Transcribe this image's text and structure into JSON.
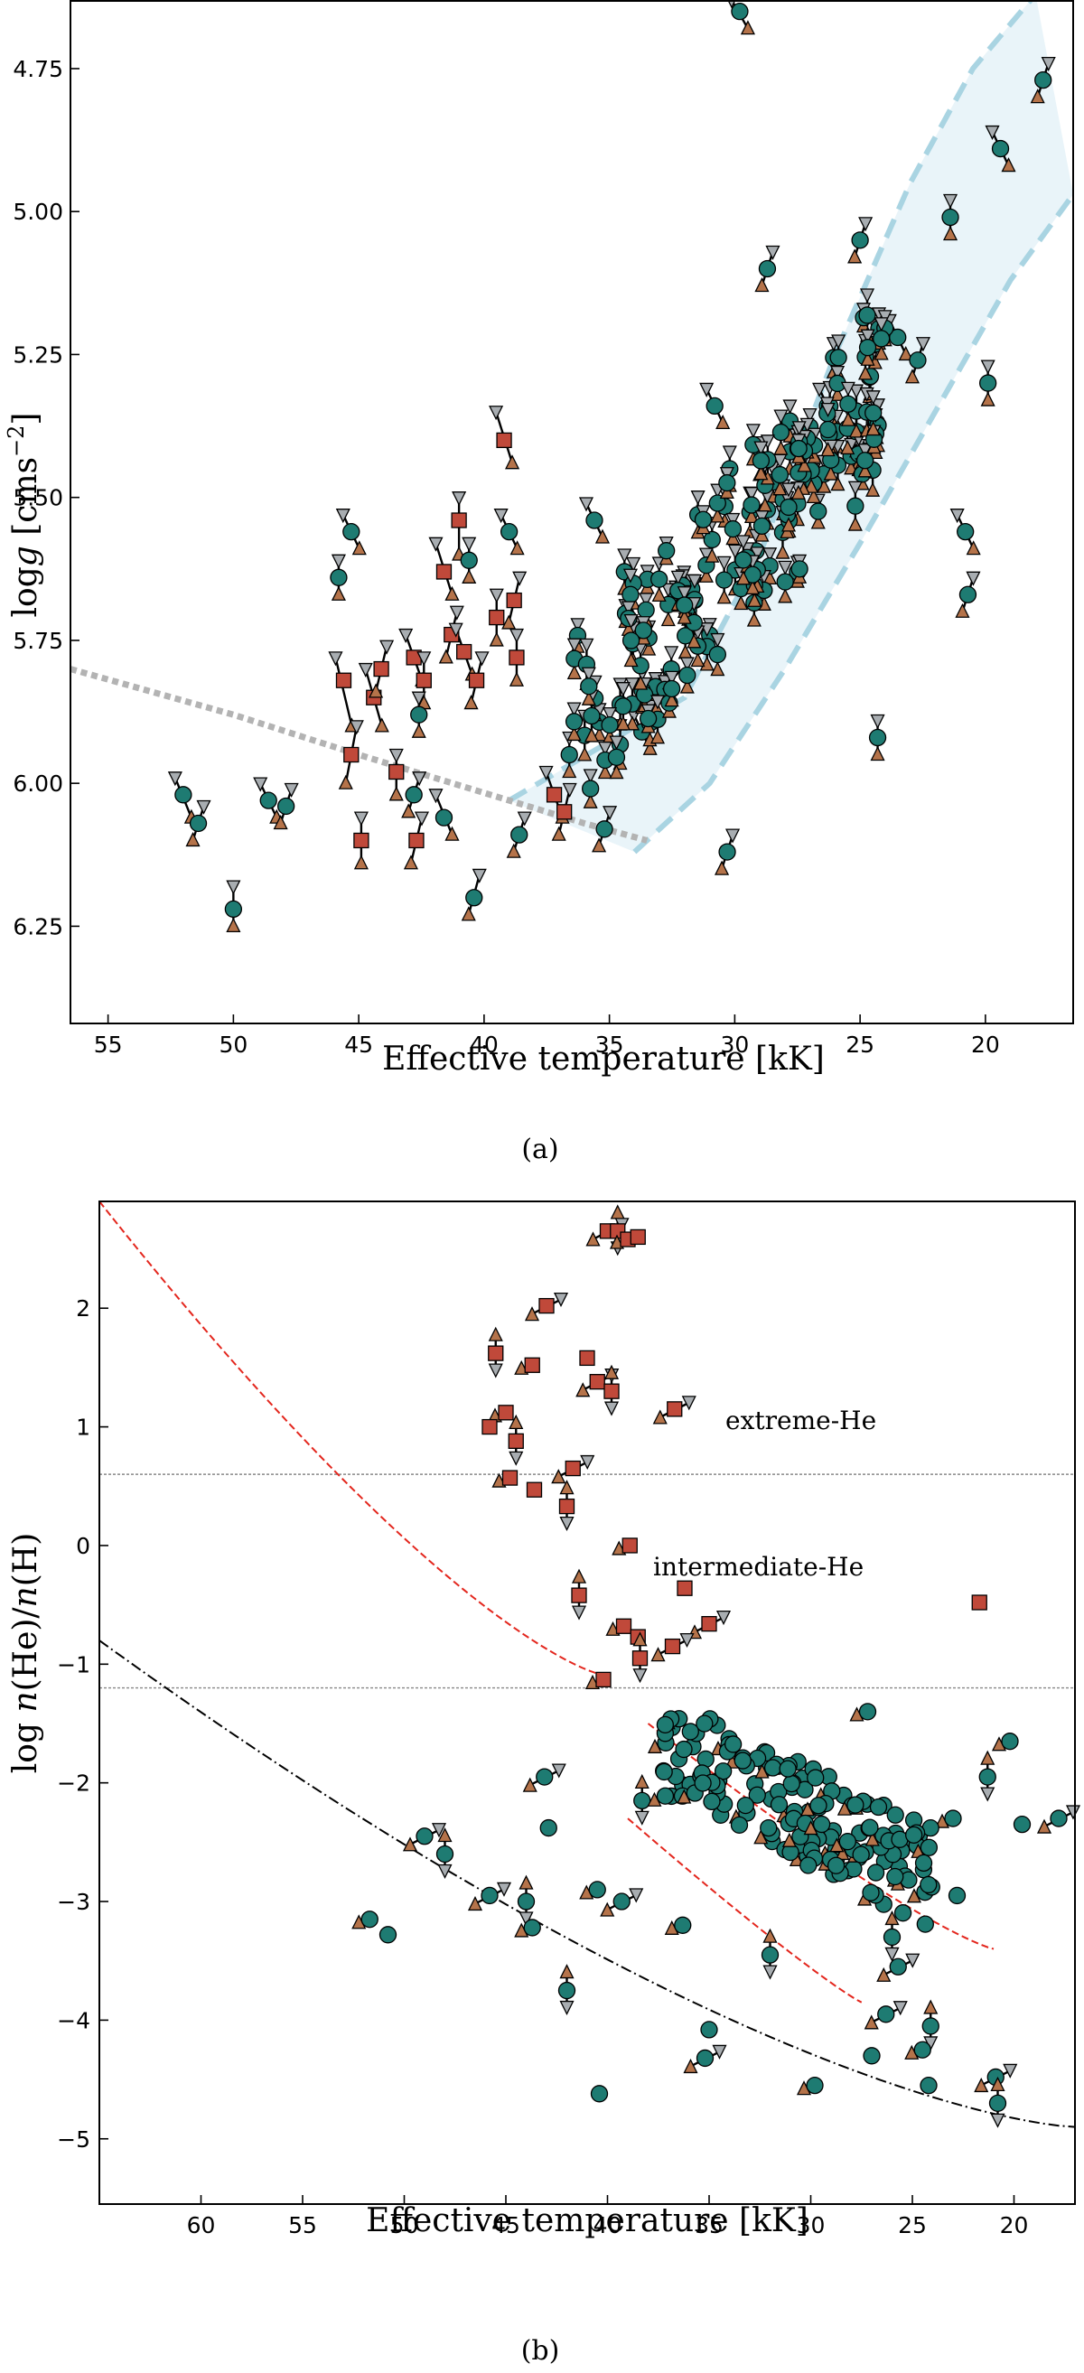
{
  "colors": {
    "H_rich": "#1e7b72",
    "He_rich": "#c0493a",
    "upper_bound": "#b5734a",
    "lower_bound": "#a8adb1",
    "band_fill": "#e9f4f9",
    "band_edge": "#a9d4e2",
    "zahb": "#b3b3b3",
    "red_curve": "#e3261d",
    "black_curve": "#000000",
    "threshold": "#888888"
  },
  "icons": {
    "H_rich": "circle",
    "He_rich": "square",
    "upper_bound": "triangle-up",
    "lower_bound": "triangle-down"
  },
  "chart_data": [
    {
      "panel": "(a)",
      "type": "scatter",
      "xlabel": "Effective temperature [kK]",
      "ylabel": "log g [cm s⁻²]",
      "ylabel_main": "log",
      "ylabel_var": "g",
      "ylabel_unit": " [cms",
      "ylabel_sup": "−2",
      "ylabel_end": "]",
      "xlim": [
        56.5,
        16.5
      ],
      "ylim": [
        6.42,
        4.63
      ],
      "xticks": [
        55,
        50,
        45,
        40,
        35,
        30,
        25,
        20
      ],
      "yticks": [
        4.75,
        5.0,
        5.25,
        5.5,
        5.75,
        6.0,
        6.25
      ],
      "yticklabels": [
        "4.75",
        "5.00",
        "5.25",
        "5.50",
        "5.75",
        "6.00",
        "6.25"
      ],
      "band": {
        "upper_edge": [
          [
            39.0,
            6.03
          ],
          [
            32.0,
            5.85
          ],
          [
            29.0,
            5.6
          ],
          [
            26.0,
            5.25
          ],
          [
            23.0,
            4.95
          ],
          [
            20.5,
            4.75
          ],
          [
            18.0,
            4.62
          ]
        ],
        "lower_edge": [
          [
            34.0,
            6.12
          ],
          [
            31.0,
            6.0
          ],
          [
            28.0,
            5.8
          ],
          [
            25.0,
            5.58
          ],
          [
            22.0,
            5.35
          ],
          [
            19.0,
            5.12
          ],
          [
            16.5,
            4.97
          ]
        ]
      },
      "zahb_line": [
        [
          56.5,
          5.8
        ],
        [
          50.0,
          5.88
        ],
        [
          45.0,
          5.95
        ],
        [
          42.0,
          5.99
        ],
        [
          39.0,
          6.03
        ],
        [
          36.0,
          6.07
        ],
        [
          33.5,
          6.1
        ]
      ],
      "he_rich_stars": [
        {
          "x": 45.6,
          "y": 5.82,
          "lo": 5.78,
          "hi": 5.9
        },
        {
          "x": 45.3,
          "y": 5.95,
          "lo": 5.9,
          "hi": 6.0
        },
        {
          "x": 44.9,
          "y": 6.1,
          "lo": 6.06,
          "hi": 6.14
        },
        {
          "x": 44.4,
          "y": 5.85,
          "lo": 5.8,
          "hi": 5.9
        },
        {
          "x": 44.1,
          "y": 5.8,
          "lo": 5.76,
          "hi": 5.84
        },
        {
          "x": 43.5,
          "y": 5.98,
          "lo": 5.95,
          "hi": 6.02
        },
        {
          "x": 42.8,
          "y": 5.78,
          "lo": 5.74,
          "hi": 5.82
        },
        {
          "x": 42.7,
          "y": 6.1,
          "lo": 6.06,
          "hi": 6.14
        },
        {
          "x": 42.4,
          "y": 5.82,
          "lo": 5.78,
          "hi": 5.86
        },
        {
          "x": 41.6,
          "y": 5.63,
          "lo": 5.58,
          "hi": 5.67
        },
        {
          "x": 41.3,
          "y": 5.74,
          "lo": 5.7,
          "hi": 5.78
        },
        {
          "x": 41.0,
          "y": 5.54,
          "lo": 5.5,
          "hi": 5.6
        },
        {
          "x": 40.8,
          "y": 5.77,
          "lo": 5.73,
          "hi": 5.81
        },
        {
          "x": 40.3,
          "y": 5.82,
          "lo": 5.78,
          "hi": 5.86
        },
        {
          "x": 39.5,
          "y": 5.71,
          "lo": 5.67,
          "hi": 5.75
        },
        {
          "x": 39.2,
          "y": 5.4,
          "lo": 5.35,
          "hi": 5.44
        },
        {
          "x": 38.8,
          "y": 5.68,
          "lo": 5.64,
          "hi": 5.72
        },
        {
          "x": 38.7,
          "y": 5.78,
          "lo": 5.74,
          "hi": 5.82
        },
        {
          "x": 37.2,
          "y": 6.02,
          "lo": 5.98,
          "hi": 6.06
        },
        {
          "x": 36.8,
          "y": 6.05,
          "lo": 6.01,
          "hi": 6.09
        }
      ],
      "h_rich_stars": [
        {
          "x": 52.0,
          "y": 6.02,
          "lo": 5.99,
          "hi": 6.06
        },
        {
          "x": 51.4,
          "y": 6.07,
          "lo": 6.04,
          "hi": 6.1
        },
        {
          "x": 50.0,
          "y": 6.22,
          "lo": 6.18,
          "hi": 6.25
        },
        {
          "x": 48.6,
          "y": 6.03,
          "lo": 6.0,
          "hi": 6.06
        },
        {
          "x": 47.9,
          "y": 6.04,
          "lo": 6.01,
          "hi": 6.07
        },
        {
          "x": 45.8,
          "y": 5.64,
          "lo": 5.61,
          "hi": 5.67
        },
        {
          "x": 45.3,
          "y": 5.56,
          "lo": 5.53,
          "hi": 5.59
        },
        {
          "x": 42.8,
          "y": 6.02,
          "lo": 5.99,
          "hi": 6.05
        },
        {
          "x": 42.6,
          "y": 5.88,
          "lo": 5.85,
          "hi": 5.91
        },
        {
          "x": 41.6,
          "y": 6.06,
          "lo": 6.02,
          "hi": 6.09
        },
        {
          "x": 40.4,
          "y": 6.2,
          "lo": 6.16,
          "hi": 6.23
        },
        {
          "x": 40.6,
          "y": 5.61,
          "lo": 5.58,
          "hi": 5.64
        },
        {
          "x": 39.0,
          "y": 5.56,
          "lo": 5.53,
          "hi": 5.59
        },
        {
          "x": 38.6,
          "y": 6.09,
          "lo": 6.06,
          "hi": 6.12
        },
        {
          "x": 36.6,
          "y": 5.95,
          "lo": 5.92,
          "hi": 5.98
        },
        {
          "x": 35.6,
          "y": 5.54,
          "lo": 5.51,
          "hi": 5.57
        },
        {
          "x": 35.2,
          "y": 6.08,
          "lo": 6.05,
          "hi": 6.11
        },
        {
          "x": 34.4,
          "y": 5.63,
          "lo": 5.6,
          "hi": 5.66
        },
        {
          "x": 33.7,
          "y": 5.91,
          "lo": 5.88,
          "hi": 5.94
        },
        {
          "x": 32.9,
          "y": 5.84,
          "lo": 5.81,
          "hi": 5.87
        },
        {
          "x": 31.6,
          "y": 5.68,
          "lo": 5.65,
          "hi": 5.71
        },
        {
          "x": 30.8,
          "y": 5.34,
          "lo": 5.31,
          "hi": 5.37
        },
        {
          "x": 30.3,
          "y": 6.12,
          "lo": 6.09,
          "hi": 6.15
        },
        {
          "x": 30.2,
          "y": 5.45,
          "lo": 5.42,
          "hi": 5.48
        },
        {
          "x": 29.8,
          "y": 4.65,
          "lo": 4.63,
          "hi": 4.68
        },
        {
          "x": 28.7,
          "y": 5.1,
          "lo": 5.07,
          "hi": 5.13
        },
        {
          "x": 27.8,
          "y": 5.42,
          "lo": 5.39,
          "hi": 5.45
        },
        {
          "x": 26.3,
          "y": 5.34,
          "lo": 5.31,
          "hi": 5.37
        },
        {
          "x": 25.0,
          "y": 5.05,
          "lo": 5.02,
          "hi": 5.08
        },
        {
          "x": 24.3,
          "y": 5.92,
          "lo": 5.89,
          "hi": 5.95
        },
        {
          "x": 23.5,
          "y": 5.22,
          "lo": 5.19,
          "hi": 5.25
        },
        {
          "x": 22.7,
          "y": 5.26,
          "lo": 5.23,
          "hi": 5.29
        },
        {
          "x": 21.4,
          "y": 5.01,
          "lo": 4.98,
          "hi": 5.04
        },
        {
          "x": 20.8,
          "y": 5.56,
          "lo": 5.53,
          "hi": 5.59
        },
        {
          "x": 20.7,
          "y": 5.67,
          "lo": 5.64,
          "hi": 5.7
        },
        {
          "x": 19.9,
          "y": 5.3,
          "lo": 5.27,
          "hi": 5.33
        },
        {
          "x": 19.4,
          "y": 4.89,
          "lo": 4.86,
          "hi": 4.92
        },
        {
          "x": 17.7,
          "y": 4.77,
          "lo": 4.74,
          "hi": 4.8
        }
      ],
      "cluster": {
        "xmin": 24.0,
        "xmax": 36.5,
        "seed": 11,
        "count": 150
      }
    },
    {
      "panel": "(b)",
      "type": "scatter",
      "xlabel": "Effective temperature [kK]",
      "ylabel": "log n(He)/n(H)",
      "ylabel_main": "log",
      "ylabel_n1": "n",
      "ylabel_mid": "(He)/",
      "ylabel_n2": "n",
      "ylabel_end": "(H)",
      "xlim": [
        65.0,
        17.0
      ],
      "ylim": [
        -5.55,
        2.9
      ],
      "xticks": [
        60,
        55,
        50,
        45,
        40,
        35,
        30,
        25,
        20
      ],
      "yticks": [
        2,
        1,
        0,
        -1,
        -2,
        -3,
        -4,
        -5
      ],
      "yticklabels": [
        "2",
        "1",
        "0",
        "−1",
        "−2",
        "−3",
        "−4",
        "−5"
      ],
      "thresholds": [
        0.6,
        -1.2
      ],
      "region_labels": [
        "extreme-He",
        "intermediate-He"
      ],
      "red_curve": {
        "x0": 65.0,
        "x1": 40.0,
        "y0": 2.9,
        "y1": -1.1
      },
      "red_segment_1": {
        "x0": 38.0,
        "x1": 21.0,
        "y0": -1.5,
        "y1": -3.4
      },
      "red_segment_2": {
        "x0": 39.0,
        "x1": 27.5,
        "y0": -2.3,
        "y1": -3.85
      },
      "black_curve": {
        "x0": 65.0,
        "x1": 17.0,
        "y0": -0.8,
        "y1": -4.9
      },
      "he_rich_stars": [
        {
          "x": 40.0,
          "y": 2.65
        },
        {
          "x": 39.5,
          "y": 2.65
        },
        {
          "x": 39.0,
          "y": 2.58
        },
        {
          "x": 38.5,
          "y": 2.6
        },
        {
          "x": 43.0,
          "y": 2.02
        },
        {
          "x": 45.5,
          "y": 1.62
        },
        {
          "x": 43.7,
          "y": 1.52
        },
        {
          "x": 41.0,
          "y": 1.58
        },
        {
          "x": 40.5,
          "y": 1.38
        },
        {
          "x": 39.8,
          "y": 1.3
        },
        {
          "x": 45.0,
          "y": 1.12
        },
        {
          "x": 45.8,
          "y": 1.0
        },
        {
          "x": 36.7,
          "y": 1.15
        },
        {
          "x": 44.5,
          "y": 0.88
        },
        {
          "x": 44.8,
          "y": 0.57
        },
        {
          "x": 43.6,
          "y": 0.47
        },
        {
          "x": 41.7,
          "y": 0.65
        },
        {
          "x": 42.0,
          "y": 0.33
        },
        {
          "x": 38.9,
          "y": 0.0
        },
        {
          "x": 36.2,
          "y": -0.36
        },
        {
          "x": 35.0,
          "y": -0.66
        },
        {
          "x": 41.4,
          "y": -0.42
        },
        {
          "x": 39.2,
          "y": -0.68
        },
        {
          "x": 38.5,
          "y": -0.77
        },
        {
          "x": 36.8,
          "y": -0.85
        },
        {
          "x": 38.4,
          "y": -0.95
        },
        {
          "x": 40.2,
          "y": -1.13
        },
        {
          "x": 21.7,
          "y": -0.48
        }
      ],
      "h_rich_stars": [
        {
          "x": 49.0,
          "y": -2.45
        },
        {
          "x": 48.0,
          "y": -2.6
        },
        {
          "x": 51.7,
          "y": -3.15
        },
        {
          "x": 50.8,
          "y": -3.28
        },
        {
          "x": 45.8,
          "y": -2.95
        },
        {
          "x": 44.0,
          "y": -3.0
        },
        {
          "x": 43.7,
          "y": -3.22
        },
        {
          "x": 42.9,
          "y": -2.38
        },
        {
          "x": 43.1,
          "y": -1.95
        },
        {
          "x": 42.0,
          "y": -3.75
        },
        {
          "x": 40.5,
          "y": -2.9
        },
        {
          "x": 40.4,
          "y": -4.62
        },
        {
          "x": 39.3,
          "y": -3.0
        },
        {
          "x": 38.3,
          "y": -2.15
        },
        {
          "x": 36.3,
          "y": -3.2
        },
        {
          "x": 35.0,
          "y": -4.08
        },
        {
          "x": 35.2,
          "y": -4.32
        },
        {
          "x": 32.0,
          "y": -3.45
        },
        {
          "x": 29.8,
          "y": -4.55
        },
        {
          "x": 27.0,
          "y": -4.3
        },
        {
          "x": 26.3,
          "y": -3.95
        },
        {
          "x": 24.1,
          "y": -4.05
        },
        {
          "x": 24.5,
          "y": -4.25
        },
        {
          "x": 24.2,
          "y": -4.55
        },
        {
          "x": 20.9,
          "y": -4.48
        },
        {
          "x": 20.8,
          "y": -4.7
        },
        {
          "x": 20.2,
          "y": -1.65
        },
        {
          "x": 19.6,
          "y": -2.35
        },
        {
          "x": 17.8,
          "y": -2.3
        },
        {
          "x": 21.3,
          "y": -1.95
        },
        {
          "x": 23.0,
          "y": -2.3
        },
        {
          "x": 22.8,
          "y": -2.95
        },
        {
          "x": 25.7,
          "y": -3.55
        },
        {
          "x": 26.0,
          "y": -3.3
        },
        {
          "x": 27.2,
          "y": -1.4
        }
      ],
      "cluster": {
        "xmin": 24.0,
        "xmax": 37.5,
        "seed": 7,
        "count": 150
      }
    }
  ],
  "captions": [
    "(a)",
    "(b)"
  ]
}
